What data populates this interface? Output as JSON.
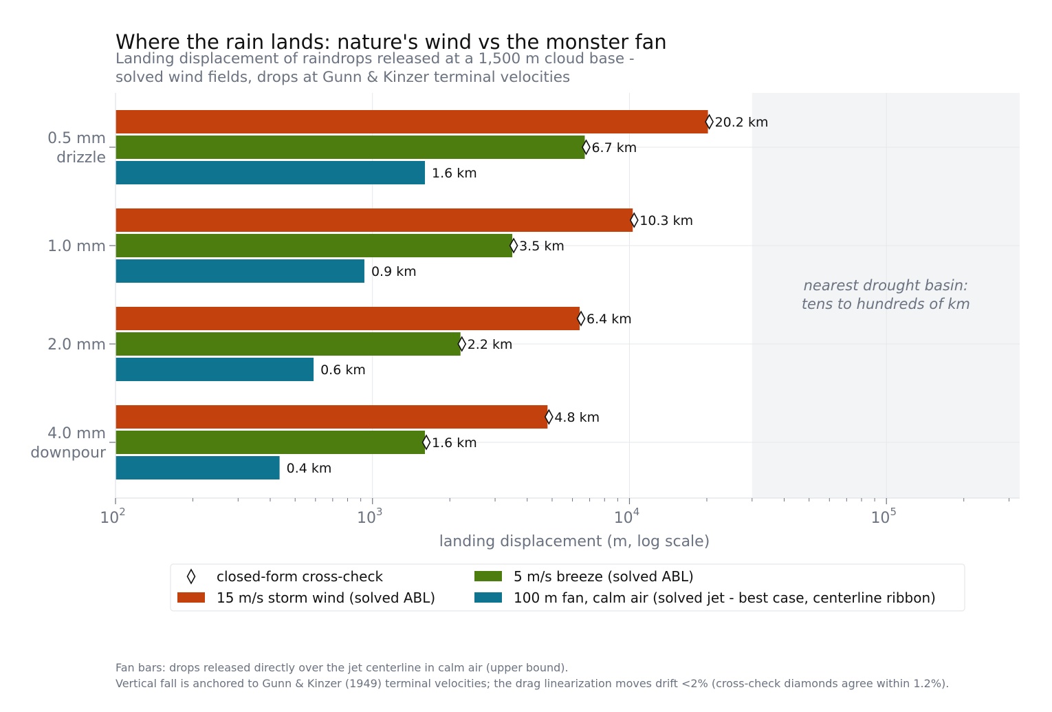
{
  "chart_data": {
    "type": "bar",
    "orientation": "horizontal",
    "title": "Where the rain lands: nature's wind vs the monster fan",
    "subtitle": [
      "Landing displacement of raindrops released at a 1,500 m cloud base -",
      "solved wind fields, drops at Gunn & Kinzer terminal velocities"
    ],
    "xlabel": "landing displacement (m, log scale)",
    "xscale": "log",
    "xlim": [
      100,
      330000
    ],
    "xticks": [
      {
        "value": 100,
        "base": "10",
        "exp": "2"
      },
      {
        "value": 1000,
        "base": "10",
        "exp": "3"
      },
      {
        "value": 10000,
        "base": "10",
        "exp": "4"
      },
      {
        "value": 100000,
        "base": "10",
        "exp": "5"
      }
    ],
    "grid": true,
    "categories": [
      [
        "0.5 mm",
        "drizzle"
      ],
      [
        "1.0 mm"
      ],
      [
        "2.0 mm"
      ],
      [
        "4.0 mm",
        "downpour"
      ]
    ],
    "series": [
      {
        "name": "15 m/s storm wind (solved ABL)",
        "color": "#c2410c",
        "values": [
          20200,
          10300,
          6400,
          4800
        ],
        "labels": [
          "20.2 km",
          "10.3 km",
          "6.4 km",
          "4.8 km"
        ],
        "crosscheck": true
      },
      {
        "name": "5 m/s breeze (solved ABL)",
        "color": "#4d7c0f",
        "values": [
          6700,
          3500,
          2200,
          1600
        ],
        "labels": [
          "6.7 km",
          "3.5 km",
          "2.2 km",
          "1.6 km"
        ],
        "crosscheck": true
      },
      {
        "name": "100 m fan, calm air (solved jet - best case, centerline ribbon)",
        "color": "#0e7490",
        "values": [
          1600,
          930,
          590,
          435
        ],
        "labels": [
          "1.6 km",
          "0.9 km",
          "0.6 km",
          "0.4 km"
        ],
        "crosscheck": false
      }
    ],
    "shaded_region": {
      "from": 30000,
      "to": 330000,
      "color": "#f3f4f6",
      "label": [
        "nearest drought basin:",
        "tens to hundreds of km"
      ]
    },
    "legend": {
      "placement": "bottom",
      "marker_entry": "closed-form cross-check",
      "order": [
        "marker",
        1,
        0,
        2
      ]
    },
    "footnotes": [
      "Fan bars: drops released directly over the jet centerline in calm air (upper bound).",
      "Vertical fall is anchored to Gunn & Kinzer (1949) terminal velocities; the drag linearization moves drift <2% (cross-check diamonds agree within 1.2%)."
    ]
  }
}
